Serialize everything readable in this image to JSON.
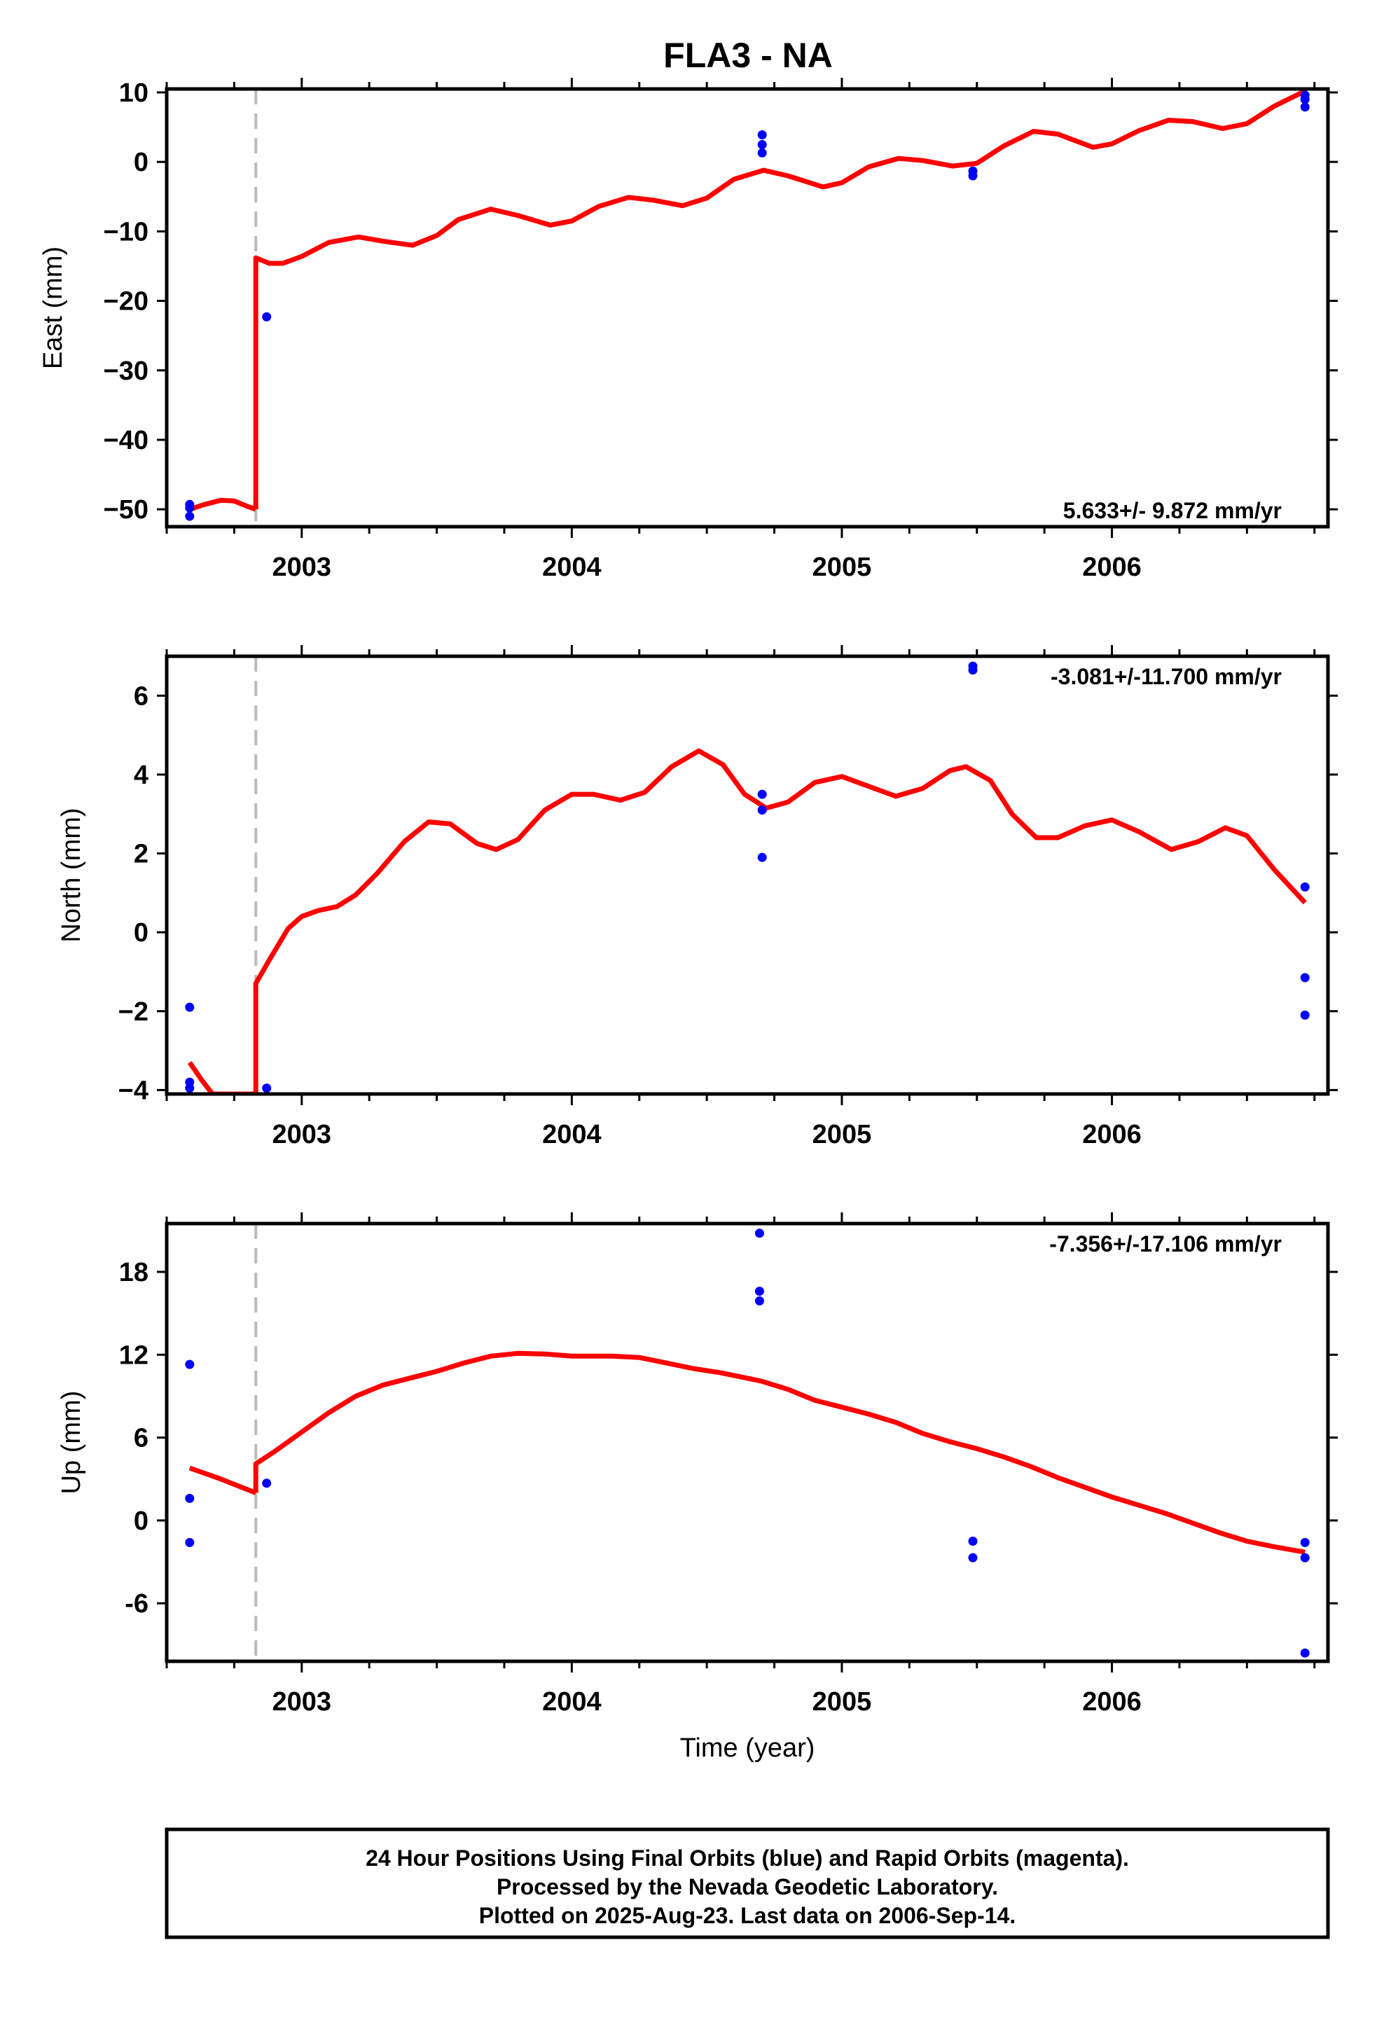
{
  "title": "FLA3 - NA",
  "xlabel": "Time (year)",
  "x_tick_labels": [
    "2003",
    "2004",
    "2005",
    "2006"
  ],
  "colors": {
    "data_points": "#0000ff",
    "model_line": "#ff0000",
    "break_line": "#bbbbbb",
    "frame": "#000000"
  },
  "footer": {
    "lines": [
      "24 Hour Positions Using Final Orbits (blue) and Rapid Orbits (magenta).",
      "Processed by the Nevada Geodetic Laboratory.",
      "Plotted on 2025-Aug-23. Last data on 2006-Sep-14."
    ]
  },
  "chart_data": [
    {
      "type": "scatter",
      "panel": "east",
      "ylabel": "East (mm)",
      "rate_label": "5.633+/- 9.872 mm/yr",
      "xlim": [
        2002.5,
        2006.8
      ],
      "ylim": [
        -52.5,
        10.5
      ],
      "y_ticks": [
        10,
        0,
        -10,
        -20,
        -30,
        -40,
        -50
      ],
      "y_tick_labels": [
        "10",
        "0",
        "−10",
        "−20",
        "−30",
        "−40",
        "−50"
      ],
      "break_year": 2002.83,
      "points": [
        {
          "x": 2002.585,
          "y": -49.3
        },
        {
          "x": 2002.585,
          "y": -49.8
        },
        {
          "x": 2002.585,
          "y": -51.0
        },
        {
          "x": 2002.87,
          "y": -22.3
        },
        {
          "x": 2004.705,
          "y": 3.9
        },
        {
          "x": 2004.705,
          "y": 2.5
        },
        {
          "x": 2004.705,
          "y": 1.3
        },
        {
          "x": 2005.485,
          "y": -1.3
        },
        {
          "x": 2005.485,
          "y": -2.0
        },
        {
          "x": 2006.715,
          "y": 9.6
        },
        {
          "x": 2006.715,
          "y": 9.0
        },
        {
          "x": 2006.715,
          "y": 7.9
        }
      ],
      "model": {
        "pre_break": [
          [
            2002.585,
            -50.0
          ],
          [
            2002.64,
            -49.3
          ],
          [
            2002.7,
            -48.7
          ],
          [
            2002.75,
            -48.8
          ],
          [
            2002.8,
            -49.6
          ],
          [
            2002.83,
            -50.0
          ]
        ],
        "post_break": [
          [
            2002.83,
            -13.8
          ],
          [
            2002.88,
            -14.6
          ],
          [
            2002.93,
            -14.6
          ],
          [
            2003.0,
            -13.6
          ],
          [
            2003.1,
            -11.6
          ],
          [
            2003.21,
            -10.8
          ],
          [
            2003.3,
            -11.4
          ],
          [
            2003.41,
            -12.0
          ],
          [
            2003.5,
            -10.6
          ],
          [
            2003.58,
            -8.3
          ],
          [
            2003.7,
            -6.8
          ],
          [
            2003.8,
            -7.7
          ],
          [
            2003.92,
            -9.1
          ],
          [
            2004.0,
            -8.5
          ],
          [
            2004.1,
            -6.4
          ],
          [
            2004.21,
            -5.1
          ],
          [
            2004.3,
            -5.5
          ],
          [
            2004.41,
            -6.3
          ],
          [
            2004.5,
            -5.2
          ],
          [
            2004.6,
            -2.5
          ],
          [
            2004.71,
            -1.2
          ],
          [
            2004.8,
            -2.0
          ],
          [
            2004.93,
            -3.6
          ],
          [
            2005.0,
            -3.0
          ],
          [
            2005.1,
            -0.7
          ],
          [
            2005.21,
            0.5
          ],
          [
            2005.3,
            0.2
          ],
          [
            2005.41,
            -0.6
          ],
          [
            2005.5,
            -0.2
          ],
          [
            2005.6,
            2.3
          ],
          [
            2005.71,
            4.4
          ],
          [
            2005.8,
            4.0
          ],
          [
            2005.93,
            2.1
          ],
          [
            2006.0,
            2.6
          ],
          [
            2006.1,
            4.5
          ],
          [
            2006.21,
            6.0
          ],
          [
            2006.3,
            5.8
          ],
          [
            2006.41,
            4.8
          ],
          [
            2006.5,
            5.5
          ],
          [
            2006.6,
            8.0
          ],
          [
            2006.715,
            10.2
          ]
        ]
      }
    },
    {
      "type": "scatter",
      "panel": "north",
      "ylabel": "North (mm)",
      "rate_label": "-3.081+/-11.700 mm/yr",
      "xlim": [
        2002.5,
        2006.8
      ],
      "ylim": [
        -4.1,
        7.0
      ],
      "y_ticks": [
        6,
        4,
        2,
        0,
        -2,
        -4
      ],
      "y_tick_labels": [
        "6",
        "4",
        "2",
        "0",
        "−2",
        "−4"
      ],
      "break_year": 2002.83,
      "points": [
        {
          "x": 2002.585,
          "y": -1.9
        },
        {
          "x": 2002.585,
          "y": -3.8
        },
        {
          "x": 2002.585,
          "y": -3.95
        },
        {
          "x": 2002.87,
          "y": -3.95
        },
        {
          "x": 2004.705,
          "y": 3.5
        },
        {
          "x": 2004.705,
          "y": 3.1
        },
        {
          "x": 2004.705,
          "y": 1.9
        },
        {
          "x": 2005.485,
          "y": 6.75
        },
        {
          "x": 2005.485,
          "y": 6.65
        },
        {
          "x": 2006.715,
          "y": 1.15
        },
        {
          "x": 2006.715,
          "y": -1.15
        },
        {
          "x": 2006.715,
          "y": -2.1
        }
      ],
      "model": {
        "pre_break": [
          [
            2002.585,
            -3.3
          ],
          [
            2002.63,
            -3.75
          ],
          [
            2002.67,
            -4.1
          ],
          [
            2002.83,
            -4.1
          ]
        ],
        "post_break": [
          [
            2002.83,
            -1.3
          ],
          [
            2002.88,
            -0.7
          ],
          [
            2002.95,
            0.1
          ],
          [
            2003.0,
            0.4
          ],
          [
            2003.06,
            0.55
          ],
          [
            2003.13,
            0.65
          ],
          [
            2003.2,
            0.95
          ],
          [
            2003.28,
            1.5
          ],
          [
            2003.38,
            2.3
          ],
          [
            2003.47,
            2.8
          ],
          [
            2003.55,
            2.75
          ],
          [
            2003.65,
            2.25
          ],
          [
            2003.72,
            2.1
          ],
          [
            2003.8,
            2.35
          ],
          [
            2003.9,
            3.1
          ],
          [
            2004.0,
            3.5
          ],
          [
            2004.08,
            3.5
          ],
          [
            2004.18,
            3.35
          ],
          [
            2004.27,
            3.55
          ],
          [
            2004.37,
            4.2
          ],
          [
            2004.47,
            4.6
          ],
          [
            2004.56,
            4.25
          ],
          [
            2004.64,
            3.5
          ],
          [
            2004.72,
            3.15
          ],
          [
            2004.8,
            3.3
          ],
          [
            2004.9,
            3.8
          ],
          [
            2005.0,
            3.95
          ],
          [
            2005.1,
            3.7
          ],
          [
            2005.2,
            3.45
          ],
          [
            2005.3,
            3.65
          ],
          [
            2005.4,
            4.1
          ],
          [
            2005.46,
            4.2
          ],
          [
            2005.55,
            3.85
          ],
          [
            2005.63,
            3.0
          ],
          [
            2005.72,
            2.4
          ],
          [
            2005.8,
            2.4
          ],
          [
            2005.9,
            2.7
          ],
          [
            2006.0,
            2.85
          ],
          [
            2006.1,
            2.55
          ],
          [
            2006.22,
            2.1
          ],
          [
            2006.32,
            2.3
          ],
          [
            2006.42,
            2.65
          ],
          [
            2006.5,
            2.45
          ],
          [
            2006.6,
            1.6
          ],
          [
            2006.715,
            0.75
          ]
        ]
      }
    },
    {
      "type": "scatter",
      "panel": "up",
      "ylabel": "Up (mm)",
      "rate_label": "-7.356+/-17.106 mm/yr",
      "xlim": [
        2002.5,
        2006.8
      ],
      "ylim": [
        -10.2,
        21.5
      ],
      "y_ticks": [
        18,
        12,
        6,
        0,
        -6
      ],
      "y_tick_labels": [
        "18",
        "12",
        "6",
        "0",
        "-6"
      ],
      "break_year": 2002.83,
      "points": [
        {
          "x": 2002.585,
          "y": 11.3
        },
        {
          "x": 2002.585,
          "y": 1.6
        },
        {
          "x": 2002.585,
          "y": -1.6
        },
        {
          "x": 2002.87,
          "y": 2.7
        },
        {
          "x": 2004.695,
          "y": 20.8
        },
        {
          "x": 2004.695,
          "y": 16.6
        },
        {
          "x": 2004.695,
          "y": 15.9
        },
        {
          "x": 2005.485,
          "y": -1.5
        },
        {
          "x": 2005.485,
          "y": -2.7
        },
        {
          "x": 2006.715,
          "y": -1.6
        },
        {
          "x": 2006.715,
          "y": -2.7
        },
        {
          "x": 2006.715,
          "y": -9.6
        }
      ],
      "model": {
        "pre_break": [
          [
            2002.585,
            3.8
          ],
          [
            2002.7,
            3.0
          ],
          [
            2002.83,
            2.0
          ]
        ],
        "post_break": [
          [
            2002.83,
            4.1
          ],
          [
            2002.9,
            5.0
          ],
          [
            2003.0,
            6.4
          ],
          [
            2003.1,
            7.8
          ],
          [
            2003.2,
            9.0
          ],
          [
            2003.3,
            9.8
          ],
          [
            2003.4,
            10.3
          ],
          [
            2003.5,
            10.8
          ],
          [
            2003.6,
            11.4
          ],
          [
            2003.7,
            11.9
          ],
          [
            2003.8,
            12.1
          ],
          [
            2003.9,
            12.05
          ],
          [
            2004.0,
            11.9
          ],
          [
            2004.15,
            11.9
          ],
          [
            2004.25,
            11.8
          ],
          [
            2004.35,
            11.4
          ],
          [
            2004.45,
            11.0
          ],
          [
            2004.55,
            10.7
          ],
          [
            2004.7,
            10.1
          ],
          [
            2004.8,
            9.5
          ],
          [
            2004.9,
            8.7
          ],
          [
            2005.0,
            8.2
          ],
          [
            2005.1,
            7.7
          ],
          [
            2005.2,
            7.1
          ],
          [
            2005.3,
            6.3
          ],
          [
            2005.4,
            5.7
          ],
          [
            2005.5,
            5.2
          ],
          [
            2005.6,
            4.6
          ],
          [
            2005.7,
            3.9
          ],
          [
            2005.8,
            3.1
          ],
          [
            2005.9,
            2.4
          ],
          [
            2006.0,
            1.7
          ],
          [
            2006.1,
            1.1
          ],
          [
            2006.2,
            0.5
          ],
          [
            2006.3,
            -0.2
          ],
          [
            2006.4,
            -0.9
          ],
          [
            2006.5,
            -1.5
          ],
          [
            2006.6,
            -1.9
          ],
          [
            2006.715,
            -2.3
          ]
        ]
      }
    }
  ]
}
